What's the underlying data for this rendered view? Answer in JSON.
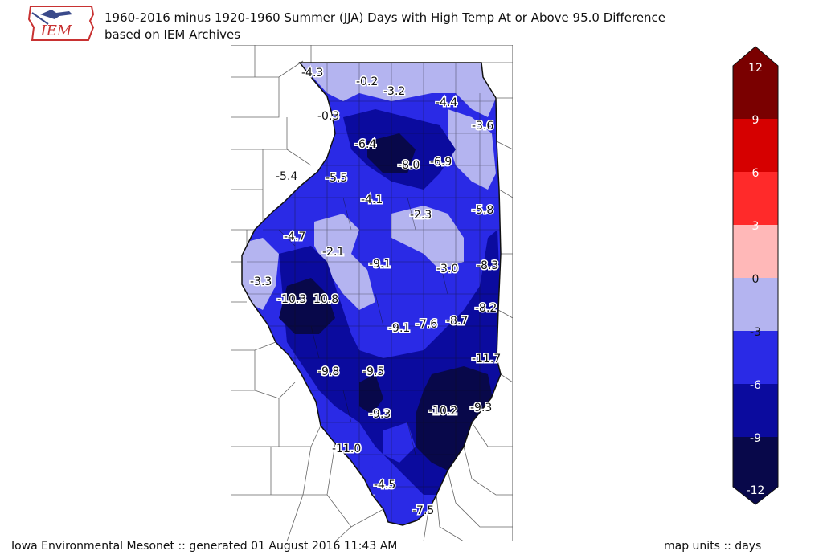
{
  "title_line1": "1960-2016 minus 1920-1960 Summer (JJA) Days with High Temp At or Above 95.0 Difference",
  "title_line2": "based on IEM Archives",
  "logo_text": "IEM",
  "footer_left": "Iowa Environmental Mesonet :: generated 01 August 2016 11:43 AM",
  "footer_right": "map units :: days",
  "colors": {
    "c_m12": "#08084a",
    "c_m9": "#0b0b9e",
    "c_m6": "#2a2ae6",
    "c_m3": "#b4b4f0",
    "c_0": "#ffb8b8",
    "c_3": "#ff2a2a",
    "c_6": "#d60000",
    "c_9": "#7a0000"
  },
  "colorbar": {
    "ticks": [
      "12",
      "9",
      "6",
      "3",
      "0",
      "-3",
      "-6",
      "-9",
      "-12"
    ],
    "colors": [
      "#7a0000",
      "#d60000",
      "#ff2a2a",
      "#ffb8b8",
      "#b4b4f0",
      "#2a2ae6",
      "#0b0b9e",
      "#08084a"
    ]
  },
  "station_values": [
    {
      "id": "v1",
      "text": "-4.3"
    },
    {
      "id": "v2",
      "text": "-0.2"
    },
    {
      "id": "v3",
      "text": "-3.2"
    },
    {
      "id": "v4",
      "text": "-4.4"
    },
    {
      "id": "v5",
      "text": "-0.3"
    },
    {
      "id": "v6",
      "text": "-3.6"
    },
    {
      "id": "v7",
      "text": "-6.4"
    },
    {
      "id": "v8",
      "text": "-8.0"
    },
    {
      "id": "v9",
      "text": "-6.9"
    },
    {
      "id": "v10",
      "text": "-5.4"
    },
    {
      "id": "v11",
      "text": "-5.5"
    },
    {
      "id": "v12",
      "text": "-4.1"
    },
    {
      "id": "v13",
      "text": "-2.3"
    },
    {
      "id": "v14",
      "text": "-5.8"
    },
    {
      "id": "v15",
      "text": "-4.7"
    },
    {
      "id": "v16",
      "text": "-2.1"
    },
    {
      "id": "v17",
      "text": "-9.1"
    },
    {
      "id": "v18",
      "text": "-3.0"
    },
    {
      "id": "v19",
      "text": "-8.3"
    },
    {
      "id": "v20",
      "text": "-3.3"
    },
    {
      "id": "v21",
      "text": "-10.3"
    },
    {
      "id": "v22",
      "text": "10.8"
    },
    {
      "id": "v23",
      "text": "-8.2"
    },
    {
      "id": "v24",
      "text": "-9.1"
    },
    {
      "id": "v25",
      "text": "-7.6"
    },
    {
      "id": "v26",
      "text": "-8.7"
    },
    {
      "id": "v27",
      "text": "-11.7"
    },
    {
      "id": "v28",
      "text": "-9.8"
    },
    {
      "id": "v29",
      "text": "-9.5"
    },
    {
      "id": "v30",
      "text": "-9.3"
    },
    {
      "id": "v31",
      "text": "-10.2"
    },
    {
      "id": "v32",
      "text": "-9.3"
    },
    {
      "id": "v33",
      "text": "-11.0"
    },
    {
      "id": "v34",
      "text": "-4.5"
    },
    {
      "id": "v35",
      "text": "-7.5"
    }
  ]
}
